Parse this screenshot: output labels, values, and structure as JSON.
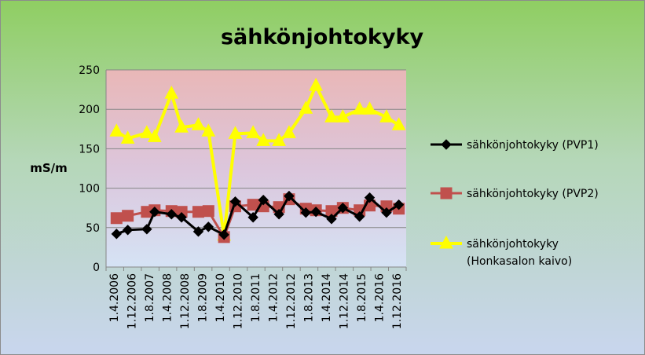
{
  "chart_data": {
    "type": "line",
    "title": "sähkönjohtokyky",
    "xlabel": "",
    "ylabel": "mS/m",
    "ylim": [
      0,
      250
    ],
    "yticks": [
      "0",
      "50",
      "100",
      "150",
      "200",
      "250"
    ],
    "categories": [
      "1.4.2006",
      "1.12.2006",
      "1.8.2007",
      "1.4.2008",
      "1.12.2008",
      "1.8.2009",
      "1.4.2010",
      "1.12.2010",
      "1.8.2011",
      "1.4.2012",
      "1.12.2012",
      "1.8.2013",
      "1.4.2014",
      "1.12.2014",
      "1.8.2015",
      "1.4.2016",
      "1.12.2016"
    ],
    "date_range": [
      "2006-04-01",
      "2016-12-01"
    ],
    "grid": true,
    "legend_position": "right",
    "background": {
      "top_color": "#e9b7b7",
      "bottom_color": "#d5e3f5",
      "outer_top": "#8fce62",
      "outer_bottom": "#c9d6ee"
    },
    "series": [
      {
        "name": "sähkönjohtokyky (PVP1)",
        "color": "#000000",
        "marker": "diamond",
        "points": [
          {
            "x": "2006-04-15",
            "y": 42
          },
          {
            "x": "2006-09-15",
            "y": 47
          },
          {
            "x": "2007-06-01",
            "y": 48
          },
          {
            "x": "2007-09-15",
            "y": 70
          },
          {
            "x": "2008-05-01",
            "y": 67
          },
          {
            "x": "2008-09-15",
            "y": 63
          },
          {
            "x": "2009-05-01",
            "y": 45
          },
          {
            "x": "2009-09-15",
            "y": 51
          },
          {
            "x": "2010-04-15",
            "y": 41
          },
          {
            "x": "2010-09-15",
            "y": 83
          },
          {
            "x": "2011-05-15",
            "y": 63
          },
          {
            "x": "2011-10-01",
            "y": 85
          },
          {
            "x": "2012-05-01",
            "y": 67
          },
          {
            "x": "2012-09-15",
            "y": 90
          },
          {
            "x": "2013-05-01",
            "y": 69
          },
          {
            "x": "2013-09-15",
            "y": 70
          },
          {
            "x": "2014-04-15",
            "y": 61
          },
          {
            "x": "2014-09-15",
            "y": 75
          },
          {
            "x": "2015-05-01",
            "y": 64
          },
          {
            "x": "2015-09-15",
            "y": 88
          },
          {
            "x": "2016-05-01",
            "y": 69
          },
          {
            "x": "2016-10-15",
            "y": 79
          }
        ]
      },
      {
        "name": "sähkönjohtokyky (PVP2)",
        "color": "#c0504d",
        "marker": "square",
        "points": [
          {
            "x": "2006-04-15",
            "y": 62
          },
          {
            "x": "2006-09-15",
            "y": 65
          },
          {
            "x": "2007-06-01",
            "y": 70
          },
          {
            "x": "2007-09-15",
            "y": 72
          },
          {
            "x": "2008-05-01",
            "y": 71
          },
          {
            "x": "2008-09-15",
            "y": 70
          },
          {
            "x": "2009-05-01",
            "y": 70
          },
          {
            "x": "2009-09-15",
            "y": 71
          },
          {
            "x": "2010-04-15",
            "y": 38
          },
          {
            "x": "2010-09-15",
            "y": 77
          },
          {
            "x": "2011-05-15",
            "y": 79
          },
          {
            "x": "2011-10-01",
            "y": 77
          },
          {
            "x": "2012-05-01",
            "y": 76
          },
          {
            "x": "2012-09-15",
            "y": 86
          },
          {
            "x": "2013-05-01",
            "y": 74
          },
          {
            "x": "2013-09-15",
            "y": 72
          },
          {
            "x": "2014-04-15",
            "y": 71
          },
          {
            "x": "2014-09-15",
            "y": 75
          },
          {
            "x": "2015-05-01",
            "y": 72
          },
          {
            "x": "2015-09-15",
            "y": 78
          },
          {
            "x": "2016-05-01",
            "y": 77
          },
          {
            "x": "2016-10-15",
            "y": 74
          }
        ]
      },
      {
        "name": "sähkönjohtokyky (Honkasalon kaivo)",
        "name_lines": [
          "sähkönjohtokyky",
          "(Honkasalon kaivo)"
        ],
        "color": "#ffff00",
        "marker": "triangle",
        "points": [
          {
            "x": "2006-04-15",
            "y": 172
          },
          {
            "x": "2006-09-15",
            "y": 163
          },
          {
            "x": "2007-06-01",
            "y": 170
          },
          {
            "x": "2007-09-15",
            "y": 165
          },
          {
            "x": "2008-05-01",
            "y": 220
          },
          {
            "x": "2008-09-15",
            "y": 177
          },
          {
            "x": "2009-05-01",
            "y": 180
          },
          {
            "x": "2009-09-15",
            "y": 172
          },
          {
            "x": "2010-04-15",
            "y": 40
          },
          {
            "x": "2010-09-15",
            "y": 169
          },
          {
            "x": "2011-05-15",
            "y": 170
          },
          {
            "x": "2011-10-01",
            "y": 160
          },
          {
            "x": "2012-05-01",
            "y": 160
          },
          {
            "x": "2012-09-15",
            "y": 170
          },
          {
            "x": "2013-05-01",
            "y": 201
          },
          {
            "x": "2013-09-15",
            "y": 230
          },
          {
            "x": "2014-04-15",
            "y": 190
          },
          {
            "x": "2014-09-15",
            "y": 190
          },
          {
            "x": "2015-05-01",
            "y": 200
          },
          {
            "x": "2015-09-15",
            "y": 200
          },
          {
            "x": "2016-05-01",
            "y": 190
          },
          {
            "x": "2016-10-15",
            "y": 180
          }
        ]
      }
    ]
  }
}
